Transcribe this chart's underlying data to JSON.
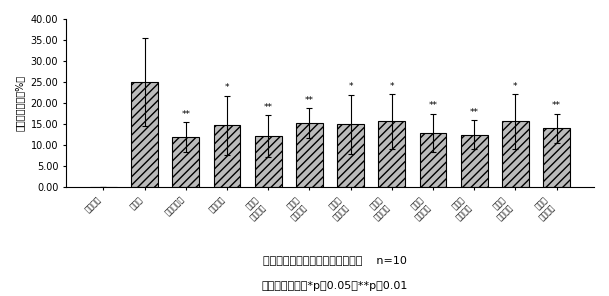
{
  "categories": [
    "假模型组",
    "模型组",
    "尼莫地平组",
    "银心通组",
    "矮牛十\n中剂量组",
    "矮牛十\n小剂量组",
    "矮牛十\n中剂量组",
    "矮牛十\n大剂量组",
    "矮牛十\n中剂量组",
    "矮牛十\n小剂量组",
    "矮牛元\n中剂量组",
    "矮牛元\n大剂量组"
  ],
  "values": [
    0.0,
    25.0,
    12.0,
    14.8,
    12.2,
    15.3,
    15.0,
    15.7,
    13.0,
    12.5,
    15.7,
    14.0
  ],
  "errors": [
    0.0,
    10.5,
    3.5,
    7.0,
    5.0,
    3.5,
    7.0,
    6.5,
    4.5,
    3.5,
    6.5,
    3.5
  ],
  "significance": [
    "",
    "",
    "**",
    "*",
    "**",
    "**",
    "*",
    "*",
    "**",
    "**",
    "*",
    "**"
  ],
  "ylabel": "脑梗死灶体积（%）",
  "ylim": [
    0,
    40
  ],
  "yticks": [
    0.0,
    5.0,
    10.0,
    15.0,
    20.0,
    25.0,
    30.0,
    35.0,
    40.0
  ],
  "caption_line1": "各给药组对大鼠脑梗死体积的影响    n=10",
  "caption_line2": "与模型组比较，*p＜0.05，**p＜0.01",
  "hatch": "////",
  "bar_color": "#bbbbbb",
  "bar_edge_color": "#000000",
  "bar_width": 0.65,
  "fig_bg": "#ffffff"
}
